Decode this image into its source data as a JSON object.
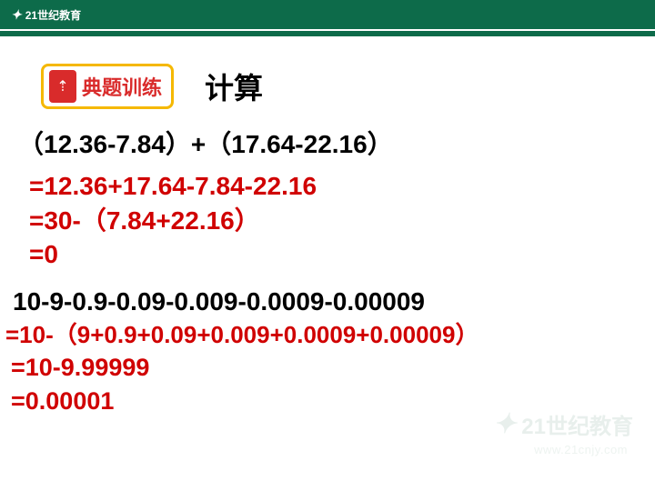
{
  "header": {
    "logo_icon": "✦",
    "logo_text": "21世纪教育"
  },
  "badge": {
    "icon_glyph": "⇡",
    "label": "典题训练"
  },
  "title": "计算",
  "problem1": {
    "question": "（12.36-7.84）+（17.64-22.16）",
    "step1": "=12.36+17.64-7.84-22.16",
    "step2": "=30-（7.84+22.16）",
    "step3": "=0"
  },
  "problem2": {
    "question": "10-9-0.9-0.09-0.009-0.0009-0.00009",
    "step1": "=10-（9+0.9+0.09+0.009+0.0009+0.00009）",
    "step2": "=10-9.99999",
    "step3": "=0.00001"
  },
  "watermark": {
    "icon": "✦",
    "text": "21世纪教育",
    "url": "www.21cnjy.com"
  }
}
